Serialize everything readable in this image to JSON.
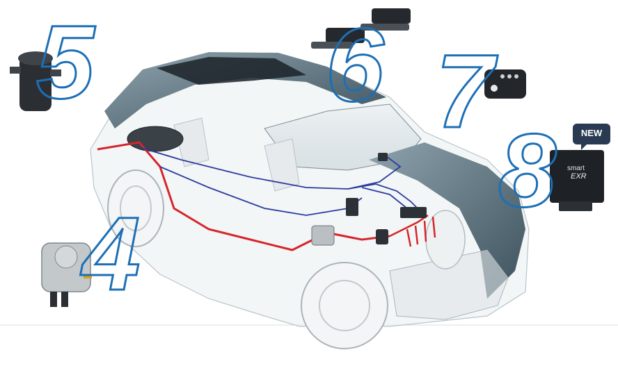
{
  "components": [
    {
      "id": "5",
      "label": "5"
    },
    {
      "id": "6",
      "label": "6"
    },
    {
      "id": "7",
      "label": "7"
    },
    {
      "id": "8",
      "label": "8"
    },
    {
      "id": "4",
      "label": "4"
    }
  ],
  "badge": {
    "text": "NEW"
  },
  "ecu": {
    "brand_line": "smart",
    "model_line": "EXR"
  },
  "colors": {
    "number_stroke": "#1c6fb6",
    "gas_line": "#d6252a",
    "wire_line": "#2c3b9c",
    "car_body": "#5d7480",
    "badge_bg": "#2a3a52"
  }
}
